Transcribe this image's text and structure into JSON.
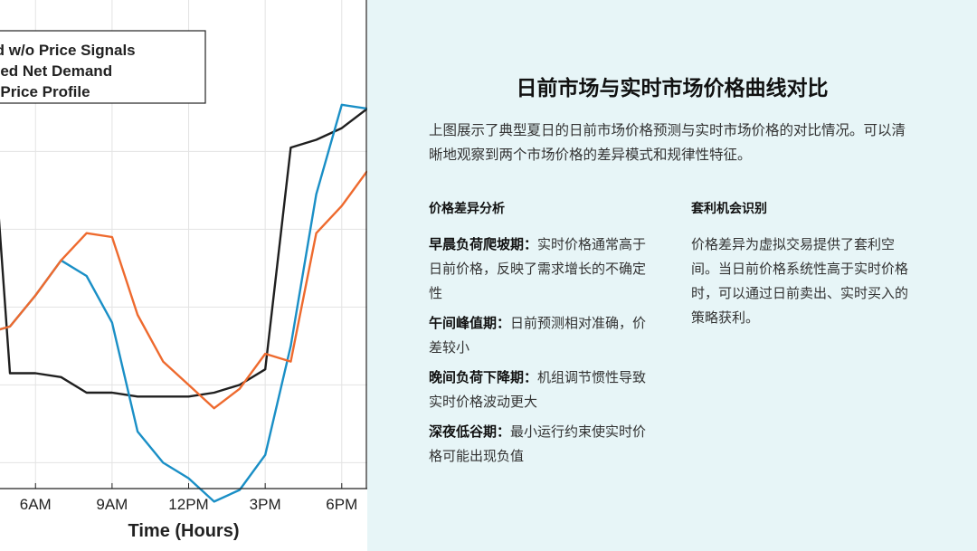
{
  "chart_data": {
    "type": "line",
    "xlabel": "Time (Hours)",
    "x_ticks": [
      "6AM",
      "9AM",
      "12PM",
      "3PM",
      "6PM"
    ],
    "x_tick_values": [
      6,
      9,
      12,
      15,
      18
    ],
    "xlim": [
      3.9,
      19.0
    ],
    "ylim": [
      0,
      1
    ],
    "grid": true,
    "legend_placement": "top-left",
    "series": [
      {
        "name": "Demand w/o Price Signals",
        "color": "#1f1f1f",
        "x": [
          3.9,
          4.0,
          4.5,
          5.0,
          6.0,
          7.0,
          8.0,
          9.0,
          10.0,
          11.0,
          12.0,
          13.0,
          14.0,
          15.0,
          16.0,
          17.0,
          18.0,
          19.0
        ],
        "y": [
          0.71,
          0.71,
          0.71,
          0.25,
          0.25,
          0.24,
          0.2,
          0.2,
          0.19,
          0.19,
          0.19,
          0.2,
          0.22,
          0.26,
          0.83,
          0.85,
          0.88,
          0.93
        ]
      },
      {
        "name": "Optimized Net Demand",
        "color": "#1a8fc6",
        "x": [
          3.9,
          5.0,
          6.0,
          7.0,
          8.0,
          9.0,
          10.0,
          11.0,
          12.0,
          13.0,
          14.0,
          15.0,
          16.0,
          17.0,
          18.0,
          19.0
        ],
        "y": [
          0.35,
          0.37,
          0.45,
          0.54,
          0.5,
          0.38,
          0.1,
          0.02,
          -0.02,
          -0.08,
          -0.05,
          0.04,
          0.32,
          0.71,
          0.94,
          0.93
        ]
      },
      {
        "name": "Energy Price Profile",
        "color": "#ee6a2e",
        "x": [
          3.9,
          5.0,
          6.0,
          7.0,
          8.0,
          9.0,
          10.0,
          11.0,
          12.0,
          13.0,
          14.0,
          15.0,
          16.0,
          17.0,
          18.0,
          19.0
        ],
        "y": [
          0.35,
          0.37,
          0.45,
          0.54,
          0.61,
          0.6,
          0.4,
          0.28,
          0.22,
          0.16,
          0.21,
          0.3,
          0.28,
          0.61,
          0.68,
          0.77
        ]
      }
    ],
    "legend": [
      {
        "label": "Demand w/o Price Signals",
        "color": "#1f1f1f"
      },
      {
        "label": "Optimized Net Demand",
        "color": "#1a8fc6"
      },
      {
        "label": "Energy Price Profile",
        "color": "#ee6a2e"
      }
    ]
  },
  "panel": {
    "title": "日前市场与实时市场价格曲线对比",
    "intro": "上图展示了典型夏日的日前市场价格预测与实时市场价格的对比情况。可以清晰地观察到两个市场价格的差异模式和规律性特征。",
    "left_heading": "价格差异分析",
    "items": [
      {
        "term": "早晨负荷爬坡期：",
        "text": "实时价格通常高于日前价格，反映了需求增长的不确定性"
      },
      {
        "term": "午间峰值期：",
        "text": "日前预测相对准确，价差较小"
      },
      {
        "term": "晚间负荷下降期：",
        "text": "机组调节惯性导致实时价格波动更大"
      },
      {
        "term": "深夜低谷期：",
        "text": "最小运行约束使实时价格可能出现负值"
      }
    ],
    "right_heading": "套利机会识别",
    "right_text": "价格差异为虚拟交易提供了套利空间。当日前价格系统性高于实时价格时，可以通过日前卖出、实时买入的策略获利。"
  }
}
